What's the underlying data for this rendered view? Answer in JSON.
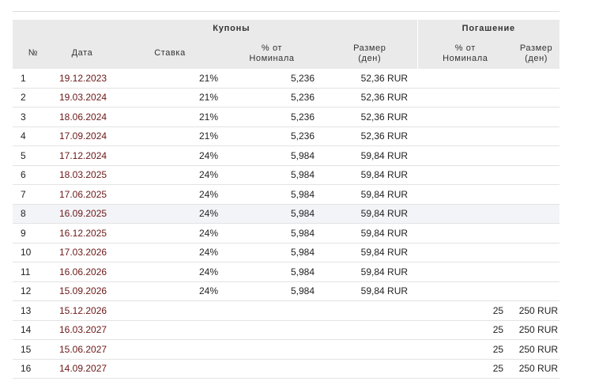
{
  "header": {
    "group_coupons": "Купоны",
    "group_redemption": "Погашение",
    "col_num": "№",
    "col_date": "Дата",
    "col_rate": "Ставка",
    "col_coupon_pct": "% от\nНоминала",
    "col_coupon_amount": "Размер\n(ден)",
    "col_redeem_pct": "% от\nНоминала",
    "col_redeem_amount": "Размер\n(ден)"
  },
  "rows": [
    {
      "num": "1",
      "date": "19.12.2023",
      "rate": "21%",
      "pct": "5,236",
      "amount": "52,36 RUR",
      "redeem_pct": "",
      "redeem_amount": ""
    },
    {
      "num": "2",
      "date": "19.03.2024",
      "rate": "21%",
      "pct": "5,236",
      "amount": "52,36 RUR",
      "redeem_pct": "",
      "redeem_amount": ""
    },
    {
      "num": "3",
      "date": "18.06.2024",
      "rate": "21%",
      "pct": "5,236",
      "amount": "52,36 RUR",
      "redeem_pct": "",
      "redeem_amount": ""
    },
    {
      "num": "4",
      "date": "17.09.2024",
      "rate": "21%",
      "pct": "5,236",
      "amount": "52,36 RUR",
      "redeem_pct": "",
      "redeem_amount": ""
    },
    {
      "num": "5",
      "date": "17.12.2024",
      "rate": "24%",
      "pct": "5,984",
      "amount": "59,84 RUR",
      "redeem_pct": "",
      "redeem_amount": ""
    },
    {
      "num": "6",
      "date": "18.03.2025",
      "rate": "24%",
      "pct": "5,984",
      "amount": "59,84 RUR",
      "redeem_pct": "",
      "redeem_amount": ""
    },
    {
      "num": "7",
      "date": "17.06.2025",
      "rate": "24%",
      "pct": "5,984",
      "amount": "59,84 RUR",
      "redeem_pct": "",
      "redeem_amount": ""
    },
    {
      "num": "8",
      "date": "16.09.2025",
      "rate": "24%",
      "pct": "5,984",
      "amount": "59,84 RUR",
      "redeem_pct": "",
      "redeem_amount": ""
    },
    {
      "num": "9",
      "date": "16.12.2025",
      "rate": "24%",
      "pct": "5,984",
      "amount": "59,84 RUR",
      "redeem_pct": "",
      "redeem_amount": ""
    },
    {
      "num": "10",
      "date": "17.03.2026",
      "rate": "24%",
      "pct": "5,984",
      "amount": "59,84 RUR",
      "redeem_pct": "",
      "redeem_amount": ""
    },
    {
      "num": "11",
      "date": "16.06.2026",
      "rate": "24%",
      "pct": "5,984",
      "amount": "59,84 RUR",
      "redeem_pct": "",
      "redeem_amount": ""
    },
    {
      "num": "12",
      "date": "15.09.2026",
      "rate": "24%",
      "pct": "5,984",
      "amount": "59,84 RUR",
      "redeem_pct": "",
      "redeem_amount": ""
    },
    {
      "num": "13",
      "date": "15.12.2026",
      "rate": "",
      "pct": "",
      "amount": "",
      "redeem_pct": "25",
      "redeem_amount": "250 RUR"
    },
    {
      "num": "14",
      "date": "16.03.2027",
      "rate": "",
      "pct": "",
      "amount": "",
      "redeem_pct": "25",
      "redeem_amount": "250 RUR"
    },
    {
      "num": "15",
      "date": "15.06.2027",
      "rate": "",
      "pct": "",
      "amount": "",
      "redeem_pct": "25",
      "redeem_amount": "250 RUR"
    },
    {
      "num": "16",
      "date": "14.09.2027",
      "rate": "",
      "pct": "",
      "amount": "",
      "redeem_pct": "25",
      "redeem_amount": "250 RUR"
    }
  ],
  "highlighted_row": 7,
  "colors": {
    "header_bg": "#eaeaea",
    "date_text": "#6b1717",
    "row_highlight": "#f3f4f8"
  }
}
